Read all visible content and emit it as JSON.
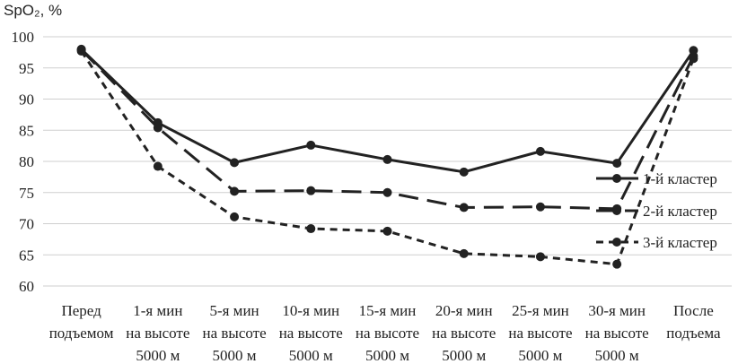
{
  "chart_data": {
    "type": "line",
    "ylabel": "SpO₂, %",
    "xlabel": "",
    "ylim": [
      60,
      100
    ],
    "yticks": [
      "100",
      "95",
      "90",
      "85",
      "80",
      "75",
      "70",
      "65",
      "60"
    ],
    "grid": true,
    "legend_position": "right",
    "categories": [
      [
        "Перед",
        "подъемом"
      ],
      [
        "1-я мин",
        "на высоте",
        "5000 м"
      ],
      [
        "5-я мин",
        "на высоте",
        "5000 м"
      ],
      [
        "10-я мин",
        "на высоте",
        "5000 м"
      ],
      [
        "15-я мин",
        "на высоте",
        "5000 м"
      ],
      [
        "20-я мин",
        "на высоте",
        "5000 м"
      ],
      [
        "25-я мин",
        "на высоте",
        "5000 м"
      ],
      [
        "30-я мин",
        "на высоте",
        "5000 м"
      ],
      [
        "После",
        "подъема"
      ]
    ],
    "series": [
      {
        "name": "1-й кластер",
        "dash": "solid",
        "color": "#222222",
        "values": [
          98.0,
          86.2,
          79.8,
          82.6,
          80.3,
          78.3,
          81.6,
          79.7,
          97.8
        ]
      },
      {
        "name": "2-й кластер",
        "dash": "long-dash",
        "color": "#222222",
        "values": [
          97.9,
          85.4,
          75.2,
          75.3,
          75.0,
          72.6,
          72.7,
          72.4,
          96.9
        ]
      },
      {
        "name": "3-й кластер",
        "dash": "short-dash",
        "color": "#222222",
        "values": [
          97.7,
          79.2,
          71.1,
          69.2,
          68.8,
          65.2,
          64.7,
          63.5,
          96.5
        ]
      }
    ]
  }
}
